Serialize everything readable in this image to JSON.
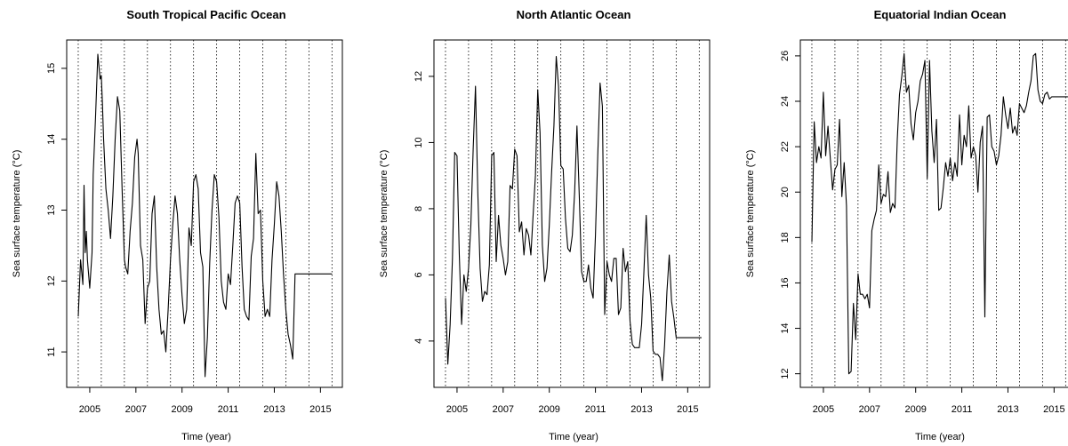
{
  "chart_data": [
    {
      "type": "line",
      "title": "South Tropical Pacific Ocean",
      "xlabel": "Time (year)",
      "ylabel": "Sea surface temperature (°C)",
      "xlim": [
        2004.0,
        2015.95
      ],
      "ylim": [
        10.5,
        15.4
      ],
      "xticks": [
        2005,
        2007,
        2009,
        2011,
        2013,
        2015
      ],
      "yticks": [
        11,
        12,
        13,
        14,
        15
      ],
      "year_lines": [
        2004.5,
        2005.5,
        2006.5,
        2007.5,
        2008.5,
        2009.5,
        2010.5,
        2011.5,
        2012.5,
        2013.5,
        2014.5,
        2015.5
      ],
      "series": [
        {
          "color": "#000000",
          "x": [
            2004.5,
            2004.6,
            2004.7,
            2004.75,
            2004.8,
            2004.85,
            2004.9,
            2005.0,
            2005.1,
            2005.15,
            2005.25,
            2005.35,
            2005.45,
            2005.5,
            2005.55,
            2005.6,
            2005.7,
            2005.8,
            2005.9,
            2006.0,
            2006.1,
            2006.2,
            2006.3,
            2006.4,
            2006.5,
            2006.55,
            2006.65,
            2006.75,
            2006.85,
            2006.95,
            2007.05,
            2007.1,
            2007.2,
            2007.3,
            2007.4,
            2007.5,
            2007.6,
            2007.7,
            2007.8,
            2007.9,
            2008.0,
            2008.1,
            2008.2,
            2008.3,
            2008.4,
            2008.5,
            2008.6,
            2008.7,
            2008.8,
            2008.9,
            2009.0,
            2009.1,
            2009.2,
            2009.3,
            2009.4,
            2009.5,
            2009.6,
            2009.7,
            2009.8,
            2009.9,
            2010.0,
            2010.1,
            2010.2,
            2010.3,
            2010.4,
            2010.5,
            2010.6,
            2010.7,
            2010.8,
            2010.9,
            2011.0,
            2011.1,
            2011.2,
            2011.3,
            2011.4,
            2011.5,
            2011.6,
            2011.7,
            2011.8,
            2011.9,
            2012.0,
            2012.1,
            2012.2,
            2012.3,
            2012.4,
            2012.5,
            2012.6,
            2012.7,
            2012.8,
            2012.9,
            2013.0,
            2013.1,
            2013.2,
            2013.3,
            2013.4,
            2013.5,
            2013.6,
            2013.7,
            2013.8,
            2013.9,
            2014.0,
            2014.1,
            2014.2,
            2014.3,
            2014.4,
            2014.5,
            2014.6,
            2014.7,
            2014.8,
            2014.9,
            2015.0,
            2015.1,
            2015.2,
            2015.3,
            2015.4,
            2015.5
          ],
          "y": [
            11.5,
            12.3,
            11.95,
            13.35,
            12.4,
            12.7,
            12.3,
            11.9,
            12.4,
            13.5,
            14.3,
            15.2,
            14.85,
            14.9,
            14.5,
            14.0,
            13.3,
            13.0,
            12.6,
            13.2,
            14.0,
            14.6,
            14.4,
            13.3,
            12.3,
            12.2,
            12.1,
            12.7,
            13.1,
            13.75,
            14.0,
            13.8,
            12.5,
            12.3,
            11.4,
            11.9,
            12.0,
            12.95,
            13.2,
            12.2,
            11.6,
            11.25,
            11.3,
            11.0,
            11.6,
            12.3,
            12.8,
            13.2,
            12.95,
            12.3,
            11.8,
            11.4,
            11.6,
            12.75,
            12.5,
            13.4,
            13.5,
            13.3,
            12.4,
            12.2,
            10.65,
            11.2,
            12.25,
            13.0,
            13.5,
            13.4,
            12.9,
            12.0,
            11.7,
            11.6,
            12.1,
            11.95,
            12.5,
            13.1,
            13.2,
            13.1,
            12.2,
            11.6,
            11.5,
            11.45,
            12.35,
            12.6,
            13.8,
            12.95,
            13.0,
            12.0,
            11.5,
            11.6,
            11.5,
            12.3,
            12.8,
            13.4,
            13.2,
            12.7,
            12.1,
            11.6,
            11.25,
            11.1,
            10.9,
            12.1,
            12.1,
            12.1,
            12.1,
            12.1,
            12.1,
            12.1,
            12.1,
            12.1,
            12.1,
            12.1,
            12.1,
            12.1,
            12.1,
            12.1,
            12.1,
            12.1
          ]
        }
      ]
    },
    {
      "type": "line",
      "title": "North Atlantic Ocean",
      "xlabel": "Time (year)",
      "ylabel": "Sea surface temperature (°C)",
      "xlim": [
        2004.0,
        2015.95
      ],
      "ylim": [
        2.6,
        13.1
      ],
      "xticks": [
        2005,
        2007,
        2009,
        2011,
        2013,
        2015
      ],
      "yticks": [
        4,
        6,
        8,
        10,
        12
      ],
      "year_lines": [
        2004.5,
        2005.5,
        2006.5,
        2007.5,
        2008.5,
        2009.5,
        2010.5,
        2011.5,
        2012.5,
        2013.5,
        2014.5,
        2015.5
      ],
      "series": [
        {
          "color": "#000000",
          "x": [
            2004.5,
            2004.6,
            2004.7,
            2004.8,
            2004.9,
            2005.0,
            2005.1,
            2005.2,
            2005.3,
            2005.4,
            2005.5,
            2005.6,
            2005.7,
            2005.8,
            2005.9,
            2006.0,
            2006.1,
            2006.2,
            2006.3,
            2006.4,
            2006.5,
            2006.6,
            2006.7,
            2006.8,
            2006.9,
            2007.0,
            2007.1,
            2007.2,
            2007.3,
            2007.4,
            2007.5,
            2007.6,
            2007.7,
            2007.8,
            2007.9,
            2008.0,
            2008.1,
            2008.2,
            2008.3,
            2008.4,
            2008.5,
            2008.6,
            2008.7,
            2008.8,
            2008.9,
            2009.0,
            2009.1,
            2009.2,
            2009.3,
            2009.4,
            2009.5,
            2009.6,
            2009.7,
            2009.8,
            2009.9,
            2010.0,
            2010.1,
            2010.2,
            2010.3,
            2010.4,
            2010.5,
            2010.6,
            2010.7,
            2010.8,
            2010.9,
            2011.0,
            2011.1,
            2011.2,
            2011.3,
            2011.4,
            2011.5,
            2011.6,
            2011.7,
            2011.8,
            2011.9,
            2012.0,
            2012.1,
            2012.2,
            2012.3,
            2012.4,
            2012.5,
            2012.6,
            2012.7,
            2012.8,
            2012.9,
            2013.0,
            2013.1,
            2013.2,
            2013.3,
            2013.4,
            2013.5,
            2013.6,
            2013.7,
            2013.8,
            2013.9,
            2014.0,
            2014.1,
            2014.2,
            2014.3,
            2014.4,
            2014.5,
            2014.6,
            2014.7,
            2014.8,
            2014.9,
            2015.0,
            2015.1,
            2015.2,
            2015.3,
            2015.4,
            2015.5,
            2015.6
          ],
          "y": [
            5.3,
            3.3,
            4.5,
            6.5,
            9.7,
            9.6,
            6.6,
            4.5,
            6.0,
            5.5,
            6.2,
            7.5,
            9.8,
            11.7,
            8.5,
            6.2,
            5.2,
            5.5,
            5.4,
            6.3,
            9.6,
            9.7,
            6.4,
            7.8,
            6.9,
            6.5,
            6.0,
            6.4,
            8.7,
            8.6,
            9.8,
            9.6,
            7.3,
            7.6,
            6.6,
            7.4,
            7.2,
            6.6,
            7.8,
            9.0,
            11.6,
            10.3,
            6.9,
            5.8,
            6.2,
            7.5,
            9.1,
            10.5,
            12.6,
            11.7,
            9.3,
            9.2,
            7.7,
            6.8,
            6.7,
            7.2,
            8.5,
            10.5,
            8.4,
            6.1,
            5.8,
            5.8,
            6.3,
            5.6,
            5.3,
            7.2,
            9.6,
            11.8,
            11.1,
            4.8,
            6.4,
            6.0,
            5.8,
            6.5,
            6.5,
            4.8,
            5.0,
            6.8,
            6.1,
            6.4,
            4.6,
            3.9,
            3.8,
            3.8,
            3.8,
            4.5,
            6.1,
            7.8,
            6.0,
            5.3,
            3.7,
            3.6,
            3.6,
            3.5,
            2.8,
            3.9,
            5.5,
            6.6,
            5.2,
            4.7,
            4.1,
            4.1,
            4.1,
            4.1,
            4.1,
            4.1,
            4.1,
            4.1,
            4.1,
            4.1,
            4.1,
            4.1
          ]
        }
      ]
    },
    {
      "type": "line",
      "title": "Equatorial Indian Ocean",
      "xlabel": "Time (year)",
      "ylabel": "Sea surface temperature (°C)",
      "xlim": [
        2004.0,
        2015.95
      ],
      "ylim": [
        11.4,
        26.7
      ],
      "xticks": [
        2005,
        2007,
        2009,
        2011,
        2013,
        2015
      ],
      "yticks": [
        12,
        14,
        16,
        18,
        20,
        22,
        24,
        26
      ],
      "year_lines": [
        2004.5,
        2005.5,
        2006.5,
        2007.5,
        2008.5,
        2009.5,
        2010.5,
        2011.5,
        2012.5,
        2013.5,
        2014.5,
        2015.5
      ],
      "series": [
        {
          "color": "#000000",
          "x": [
            2004.5,
            2004.6,
            2004.7,
            2004.8,
            2004.9,
            2005.0,
            2005.1,
            2005.2,
            2005.3,
            2005.4,
            2005.5,
            2005.6,
            2005.7,
            2005.8,
            2005.9,
            2006.0,
            2006.1,
            2006.2,
            2006.3,
            2006.4,
            2006.5,
            2006.6,
            2006.7,
            2006.8,
            2006.9,
            2007.0,
            2007.1,
            2007.2,
            2007.3,
            2007.4,
            2007.5,
            2007.6,
            2007.7,
            2007.8,
            2007.9,
            2008.0,
            2008.1,
            2008.2,
            2008.3,
            2008.4,
            2008.5,
            2008.6,
            2008.7,
            2008.8,
            2008.9,
            2009.0,
            2009.1,
            2009.2,
            2009.3,
            2009.4,
            2009.5,
            2009.6,
            2009.7,
            2009.8,
            2009.9,
            2010.0,
            2010.1,
            2010.2,
            2010.3,
            2010.4,
            2010.5,
            2010.6,
            2010.7,
            2010.8,
            2010.9,
            2011.0,
            2011.1,
            2011.2,
            2011.3,
            2011.4,
            2011.5,
            2011.6,
            2011.7,
            2011.8,
            2011.9,
            2012.0,
            2012.1,
            2012.2,
            2012.3,
            2012.4,
            2012.5,
            2012.6,
            2012.7,
            2012.8,
            2012.9,
            2013.0,
            2013.1,
            2013.2,
            2013.3,
            2013.4,
            2013.5,
            2013.6,
            2013.7,
            2013.8,
            2013.9,
            2014.0,
            2014.1,
            2014.2,
            2014.3,
            2014.4,
            2014.5,
            2014.6,
            2014.7,
            2014.8,
            2014.9,
            2015.0,
            2015.1,
            2015.2,
            2015.3,
            2015.4,
            2015.5,
            2015.6
          ],
          "y": [
            17.8,
            23.1,
            21.3,
            22.0,
            21.5,
            24.4,
            21.6,
            22.9,
            21.5,
            20.1,
            21.0,
            21.2,
            23.2,
            19.8,
            21.3,
            19.4,
            12.0,
            12.1,
            15.1,
            13.5,
            16.4,
            15.5,
            15.5,
            15.3,
            15.5,
            14.9,
            18.3,
            18.8,
            19.2,
            21.2,
            19.5,
            19.9,
            19.8,
            20.9,
            19.1,
            19.5,
            19.3,
            22.3,
            24.3,
            25.1,
            26.1,
            24.4,
            24.7,
            23.0,
            22.3,
            23.5,
            24.0,
            24.9,
            25.2,
            25.8,
            20.6,
            25.8,
            22.7,
            21.3,
            23.2,
            19.2,
            19.3,
            20.2,
            21.3,
            20.7,
            21.5,
            20.5,
            21.3,
            20.7,
            23.4,
            21.2,
            22.5,
            22.0,
            23.8,
            21.5,
            22.0,
            21.6,
            20.0,
            22.2,
            22.9,
            14.5,
            23.3,
            23.4,
            22.0,
            21.8,
            21.2,
            21.6,
            22.5,
            24.2,
            23.4,
            22.8,
            23.7,
            22.6,
            22.9,
            22.5,
            23.9,
            23.7,
            23.5,
            23.8,
            24.4,
            24.9,
            26.0,
            26.1,
            24.5,
            24.0,
            23.9,
            24.3,
            24.4,
            24.1,
            24.2,
            24.2,
            24.2,
            24.2,
            24.2,
            24.2,
            24.2,
            24.2
          ]
        }
      ]
    }
  ]
}
